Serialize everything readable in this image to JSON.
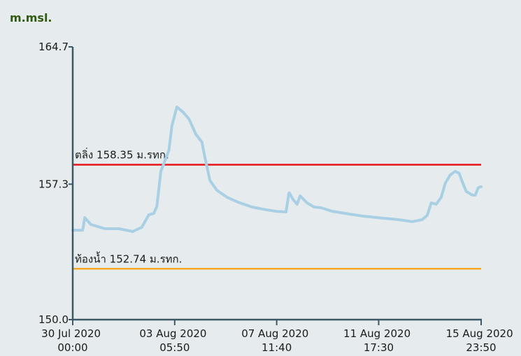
{
  "chart_data": {
    "type": "line",
    "y_axis_title": "m.msl.",
    "ylim": [
      150.0,
      164.7
    ],
    "yticks": [
      {
        "value": 150.0,
        "label": "150.0"
      },
      157.3,
      164.7
    ],
    "xlim": [
      "2020-07-30 00:00",
      "2020-08-15 23:50"
    ],
    "xticks": [
      {
        "value": "2020-07-30 00:00",
        "label": "30 Jul 2020 00:00"
      },
      {
        "value": "2020-08-03 05:50",
        "label": "03 Aug 2020 05:50"
      },
      {
        "value": "2020-08-07 11:40",
        "label": "07 Aug 2020 11:40"
      },
      {
        "value": "2020-08-11 17:30",
        "label": "11 Aug 2020 17:30"
      },
      {
        "value": "2020-08-15 23:50",
        "label": "15 Aug 2020 23:50"
      }
    ],
    "reference_lines": [
      {
        "label": "ตลิ่ง 158.35 ม.รทก.",
        "value": 158.35,
        "color": "#e8121a"
      },
      {
        "label": "ท้องน้ำ 152.74 ม.รทก.",
        "value": 152.74,
        "color": "#f5a623"
      }
    ],
    "series": [
      {
        "color": "#a9cfe4",
        "x": [
          "2020-07-30 00:00",
          "2020-07-30 10:00",
          "2020-07-30 12:00",
          "2020-07-30 18:00",
          "2020-07-31 08:00",
          "2020-07-31 22:00",
          "2020-08-01 12:00",
          "2020-08-01 21:00",
          "2020-08-02 04:00",
          "2020-08-02 09:00",
          "2020-08-02 12:00",
          "2020-08-02 16:00",
          "2020-08-02 20:00",
          "2020-08-03 00:00",
          "2020-08-03 03:00",
          "2020-08-03 08:00",
          "2020-08-03 14:00",
          "2020-08-03 20:00",
          "2020-08-04 03:00",
          "2020-08-04 09:00",
          "2020-08-04 12:00",
          "2020-08-04 17:00",
          "2020-08-05 00:00",
          "2020-08-05 10:00",
          "2020-08-05 21:00",
          "2020-08-06 11:00",
          "2020-08-07 01:00",
          "2020-08-07 11:00",
          "2020-08-07 21:00",
          "2020-08-08 00:00",
          "2020-08-08 04:00",
          "2020-08-08 08:00",
          "2020-08-08 11:00",
          "2020-08-08 18:00",
          "2020-08-09 01:00",
          "2020-08-09 08:00",
          "2020-08-09 19:00",
          "2020-08-10 12:00",
          "2020-08-11 02:00",
          "2020-08-11 16:00",
          "2020-08-12 13:00",
          "2020-08-13 03:00",
          "2020-08-13 13:00",
          "2020-08-13 18:00",
          "2020-08-13 22:00",
          "2020-08-14 03:00",
          "2020-08-14 08:00",
          "2020-08-14 12:00",
          "2020-08-14 17:00",
          "2020-08-14 22:00",
          "2020-08-15 02:00",
          "2020-08-15 05:00",
          "2020-08-15 09:00",
          "2020-08-15 15:00",
          "2020-08-15 18:00",
          "2020-08-15 21:00",
          "2020-08-15 23:50"
        ],
        "values": [
          154.82,
          154.82,
          155.5,
          155.13,
          154.9,
          154.9,
          154.75,
          154.98,
          155.65,
          155.73,
          156.11,
          157.99,
          158.56,
          159.12,
          160.44,
          161.46,
          161.19,
          160.82,
          159.99,
          159.57,
          158.74,
          157.5,
          156.97,
          156.6,
          156.33,
          156.07,
          155.92,
          155.84,
          155.8,
          156.86,
          156.48,
          156.22,
          156.67,
          156.29,
          156.07,
          156.03,
          155.84,
          155.69,
          155.58,
          155.5,
          155.39,
          155.28,
          155.39,
          155.62,
          156.29,
          156.22,
          156.6,
          157.35,
          157.8,
          157.99,
          157.88,
          157.43,
          156.9,
          156.71,
          156.71,
          157.12,
          157.16
        ]
      }
    ]
  }
}
